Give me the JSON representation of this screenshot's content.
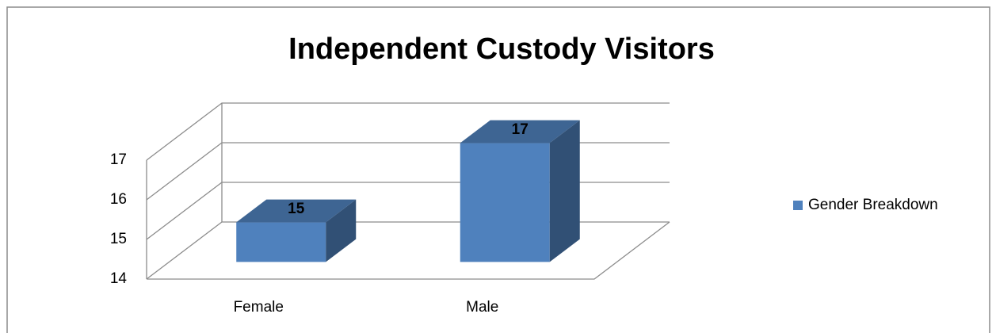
{
  "chart_data": {
    "type": "bar3d",
    "title": "Independent Custody Visitors",
    "categories": [
      "Female",
      "Male"
    ],
    "series": [
      {
        "name": "Gender Breakdown",
        "color": "#4f81bd",
        "values": [
          15,
          17
        ]
      }
    ],
    "ylim": [
      14,
      17
    ],
    "yticks": [
      14,
      15,
      16,
      17
    ],
    "grid": true,
    "legend": "right"
  }
}
